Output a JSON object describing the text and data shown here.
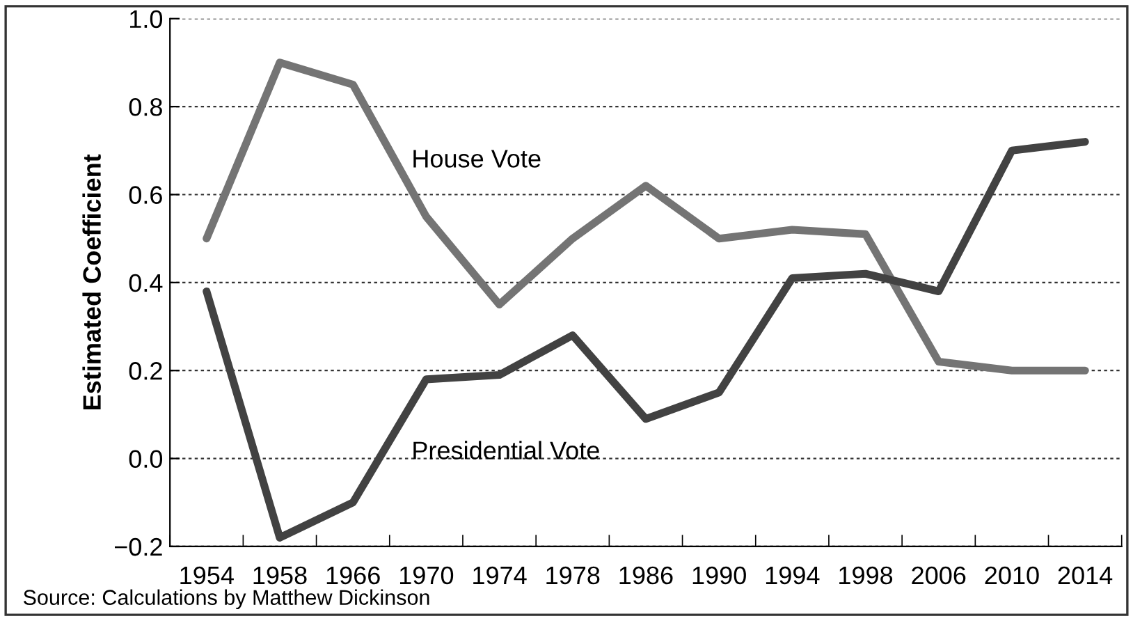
{
  "chart_data": {
    "type": "line",
    "ylabel": "Estimated Coefficient",
    "categories": [
      "1954",
      "1958",
      "1966",
      "1970",
      "1974",
      "1978",
      "1986",
      "1990",
      "1994",
      "1998",
      "2006",
      "2010",
      "2014"
    ],
    "series": [
      {
        "name": "House Vote",
        "color": "#747474",
        "values": [
          0.5,
          0.9,
          0.85,
          0.55,
          0.35,
          0.5,
          0.62,
          0.5,
          0.52,
          0.51,
          0.22,
          0.2,
          0.2
        ]
      },
      {
        "name": "Presidential Vote",
        "color": "#424242",
        "values": [
          0.38,
          -0.18,
          -0.1,
          0.18,
          0.19,
          0.28,
          0.09,
          0.15,
          0.41,
          0.42,
          0.38,
          0.7,
          0.72
        ]
      }
    ],
    "ylim": [
      -0.2,
      1.0
    ],
    "yticks": [
      {
        "value": -0.2,
        "label": "−0.2"
      },
      {
        "value": 0.0,
        "label": "0.0"
      },
      {
        "value": 0.2,
        "label": "0.2"
      },
      {
        "value": 0.4,
        "label": "0.4"
      },
      {
        "value": 0.6,
        "label": "0.6"
      },
      {
        "value": 0.8,
        "label": "0.8"
      },
      {
        "value": 1.0,
        "label": "1.0"
      }
    ],
    "grid": "y",
    "legend": false,
    "line_style": "solid",
    "marker": "none",
    "annotations": [
      "Source: Calculations by Matthew Dickinson"
    ]
  }
}
